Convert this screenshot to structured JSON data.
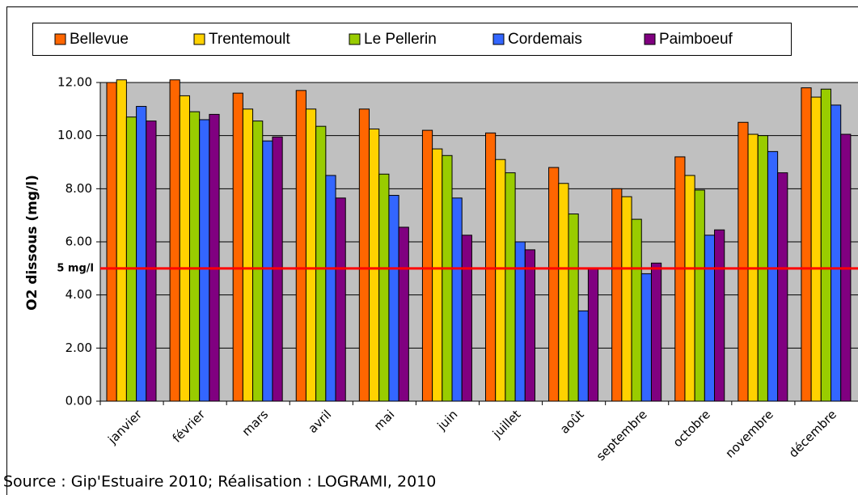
{
  "chart_data": {
    "type": "bar",
    "y_label": "O2 dissous (mg/l)",
    "source": "Source : Gip'Estuaire 2010; Réalisation : LOGRAMI, 2010",
    "categories": [
      "janvier",
      "février",
      "mars",
      "avril",
      "mai",
      "juin",
      "juillet",
      "août",
      "septembre",
      "octobre",
      "novembre",
      "décembre"
    ],
    "series": [
      {
        "name": "Bellevue",
        "color": "#ff6600",
        "values": [
          12.0,
          12.1,
          11.6,
          11.7,
          11.0,
          10.2,
          10.1,
          8.8,
          8.0,
          9.2,
          10.5,
          11.8
        ]
      },
      {
        "name": "Trentemoult",
        "color": "#ffd200",
        "values": [
          12.1,
          11.5,
          11.0,
          11.0,
          10.25,
          9.5,
          9.1,
          8.2,
          7.7,
          8.5,
          10.05,
          11.45
        ]
      },
      {
        "name": "Le Pellerin",
        "color": "#99cc00",
        "values": [
          10.7,
          10.9,
          10.55,
          10.35,
          8.55,
          9.25,
          8.6,
          7.05,
          6.85,
          7.95,
          10.0,
          11.75
        ]
      },
      {
        "name": "Cordemais",
        "color": "#3366ff",
        "values": [
          11.1,
          10.6,
          9.8,
          8.5,
          7.75,
          7.65,
          6.0,
          3.4,
          4.8,
          6.25,
          9.4,
          11.15
        ]
      },
      {
        "name": "Paimboeuf",
        "color": "#800080",
        "values": [
          10.55,
          10.8,
          9.95,
          7.65,
          6.55,
          6.25,
          5.7,
          5.0,
          5.2,
          6.45,
          8.6,
          10.05
        ]
      }
    ],
    "ylim": [
      0,
      12
    ],
    "yticks": [
      {
        "value": 0,
        "label": "0.00"
      },
      {
        "value": 2,
        "label": "2.00"
      },
      {
        "value": 4,
        "label": "4.00"
      },
      {
        "value": 6,
        "label": "6.00"
      },
      {
        "value": 8,
        "label": "8.00"
      },
      {
        "value": 10,
        "label": "10.00"
      },
      {
        "value": 12,
        "label": "12.00"
      }
    ],
    "grid": true,
    "plot_background": "#c0c0c0",
    "reference_line": {
      "value": 5,
      "label": "5 mg/l",
      "color": "#ff0000"
    }
  }
}
